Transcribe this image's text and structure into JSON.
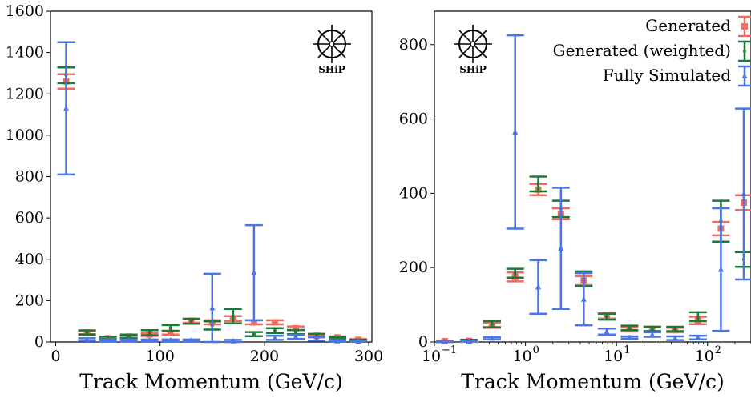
{
  "chart_data": [
    {
      "type": "scatter",
      "xlabel": "Track Momentum (GeV/c)",
      "ylabel": "",
      "xlim": [
        -5,
        303
      ],
      "ylim": [
        0,
        1600
      ],
      "xscale": "linear",
      "xticks": [
        0,
        100,
        200,
        300
      ],
      "yticks": [
        0,
        200,
        400,
        600,
        800,
        1000,
        1200,
        1400,
        1600
      ],
      "logo": "SHiP",
      "series": [
        {
          "name": "Generated",
          "color": "#f06a60",
          "marker": "square",
          "x": [
            10,
            30,
            50,
            70,
            90,
            110,
            130,
            150,
            170,
            190,
            210,
            230,
            250,
            270,
            290
          ],
          "y": [
            1260,
            46,
            18,
            26,
            36,
            44,
            103,
            95,
            113,
            95,
            95,
            66,
            30,
            22,
            10
          ],
          "err": [
            35,
            8,
            5,
            6,
            7,
            8,
            10,
            10,
            12,
            10,
            10,
            9,
            6,
            5,
            4
          ]
        },
        {
          "name": "Generated (weighted)",
          "color": "#1a7a35",
          "marker": "dot",
          "x": [
            10,
            30,
            50,
            70,
            90,
            110,
            130,
            150,
            170,
            190,
            210,
            230,
            250,
            270,
            290
          ],
          "y": [
            1290,
            46,
            20,
            28,
            45,
            68,
            100,
            80,
            125,
            38,
            55,
            48,
            32,
            18,
            8
          ],
          "err": [
            38,
            10,
            6,
            8,
            12,
            14,
            12,
            20,
            35,
            10,
            12,
            10,
            7,
            5,
            3
          ]
        },
        {
          "name": "Fully Simulated",
          "color": "#4a74e8",
          "marker": "triangle",
          "x": [
            10,
            30,
            50,
            70,
            90,
            110,
            130,
            150,
            170,
            190,
            210,
            230,
            250,
            270,
            290
          ],
          "y": [
            1130,
            12,
            8,
            8,
            8,
            8,
            8,
            165,
            5,
            335,
            20,
            25,
            15,
            5,
            3
          ],
          "err": [
            320,
            6,
            4,
            4,
            4,
            4,
            4,
            165,
            5,
            230,
            10,
            10,
            8,
            4,
            2
          ]
        }
      ]
    },
    {
      "type": "scatter",
      "xlabel": "Track Momentum (GeV/c)",
      "ylabel": "",
      "xscale": "log",
      "xlim": [
        0.1,
        300
      ],
      "ylim": [
        0,
        890
      ],
      "xticks": [
        0.1,
        1,
        10,
        100
      ],
      "xtick_labels": [
        {
          "base": "10",
          "exp": "−1"
        },
        {
          "base": "10",
          "exp": "0"
        },
        {
          "base": "10",
          "exp": "1"
        },
        {
          "base": "10",
          "exp": "2"
        }
      ],
      "yticks": [
        0,
        200,
        400,
        600,
        800
      ],
      "legend": "top-right",
      "logo": "SHiP",
      "series": [
        {
          "name": "Generated",
          "color": "#f06a60",
          "marker": "square",
          "x": [
            0.13,
            0.24,
            0.43,
            0.77,
            1.38,
            2.45,
            4.37,
            7.8,
            13.9,
            24.7,
            44,
            78.5,
            140,
            250
          ],
          "y": [
            2,
            3,
            45,
            175,
            410,
            345,
            165,
            70,
            35,
            35,
            32,
            58,
            305,
            375
          ],
          "err": [
            1,
            2,
            7,
            12,
            15,
            15,
            12,
            7,
            6,
            6,
            6,
            10,
            18,
            20
          ]
        },
        {
          "name": "Generated (weighted)",
          "color": "#1a7a35",
          "marker": "dot",
          "x": [
            0.13,
            0.24,
            0.43,
            0.77,
            1.38,
            2.45,
            4.37,
            7.8,
            13.9,
            24.7,
            44,
            78.5,
            140,
            250
          ],
          "y": [
            1,
            4,
            48,
            185,
            425,
            358,
            170,
            68,
            38,
            35,
            35,
            68,
            325,
            222
          ],
          "err": [
            1,
            2,
            8,
            12,
            20,
            22,
            20,
            8,
            6,
            6,
            6,
            12,
            55,
            20
          ]
        },
        {
          "name": "Fully Simulated",
          "color": "#4a74e8",
          "marker": "triangle",
          "x": [
            0.13,
            0.24,
            0.43,
            0.77,
            1.38,
            2.45,
            4.37,
            7.8,
            13.9,
            24.7,
            44,
            78.5,
            140,
            250
          ],
          "y": [
            1,
            2,
            10,
            565,
            148,
            252,
            115,
            28,
            12,
            20,
            10,
            12,
            195,
            398
          ],
          "err": [
            1,
            1,
            3,
            260,
            72,
            163,
            70,
            8,
            3,
            6,
            5,
            5,
            165,
            230
          ]
        }
      ]
    }
  ]
}
